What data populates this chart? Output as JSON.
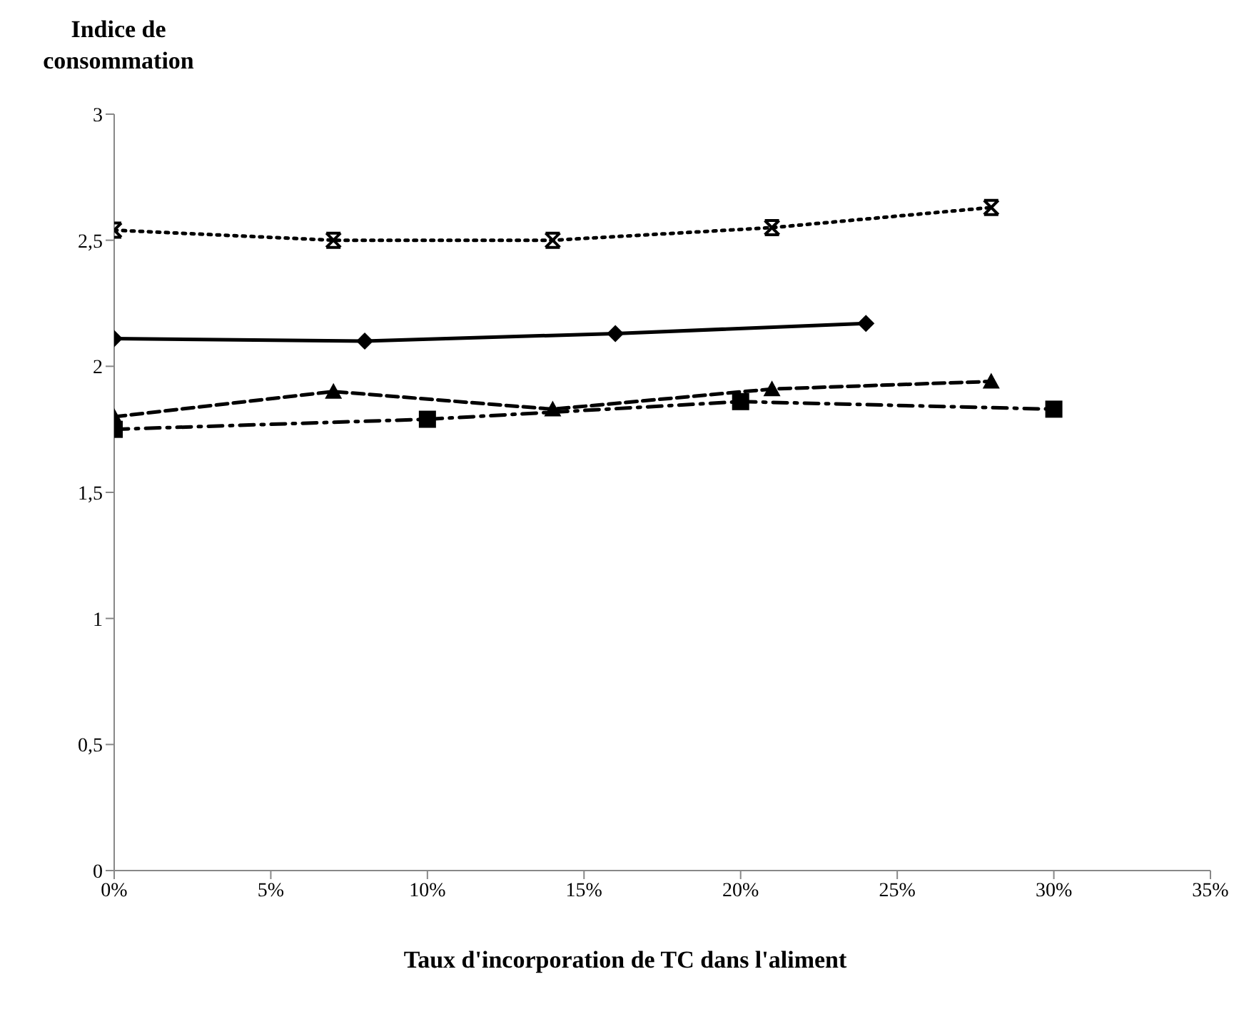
{
  "chart_data": {
    "type": "line",
    "ylabel": "Indice de consommation",
    "xlabel": "Taux d'incorporation de TC dans l'aliment",
    "xlim": [
      0,
      35
    ],
    "xticks": [
      {
        "value": 0,
        "label": "0%"
      },
      {
        "value": 5,
        "label": "5%"
      },
      {
        "value": 10,
        "label": "10%"
      },
      {
        "value": 15,
        "label": "15%"
      },
      {
        "value": 20,
        "label": "20%"
      },
      {
        "value": 25,
        "label": "25%"
      },
      {
        "value": 30,
        "label": "30%"
      },
      {
        "value": 35,
        "label": "35%"
      }
    ],
    "ylim": [
      0,
      3
    ],
    "yticks": [
      0,
      {
        "value": 0.5,
        "label": "0,5"
      },
      1,
      {
        "value": 1.5,
        "label": "1,5"
      },
      2,
      {
        "value": 2.5,
        "label": "2,5"
      },
      3
    ],
    "grid": false,
    "legend": false,
    "series": [
      {
        "color": "#000000",
        "x": [
          0,
          7,
          14,
          21,
          28
        ],
        "values": [
          2.54,
          2.5,
          2.5,
          2.55,
          2.63
        ],
        "marker": "cross",
        "line_style": "dotted"
      },
      {
        "color": "#000000",
        "x": [
          0,
          8,
          16,
          24
        ],
        "values": [
          2.11,
          2.1,
          2.13,
          2.17
        ],
        "marker": "diamond",
        "line_style": "solid"
      },
      {
        "color": "#000000",
        "x": [
          0,
          7,
          14,
          21,
          28
        ],
        "values": [
          1.8,
          1.9,
          1.83,
          1.91,
          1.94
        ],
        "marker": "triangle",
        "line_style": "dashed"
      },
      {
        "color": "#000000",
        "x": [
          0,
          10,
          20,
          30
        ],
        "values": [
          1.75,
          1.79,
          1.86,
          1.83
        ],
        "marker": "square",
        "line_style": "dashdot"
      }
    ]
  }
}
